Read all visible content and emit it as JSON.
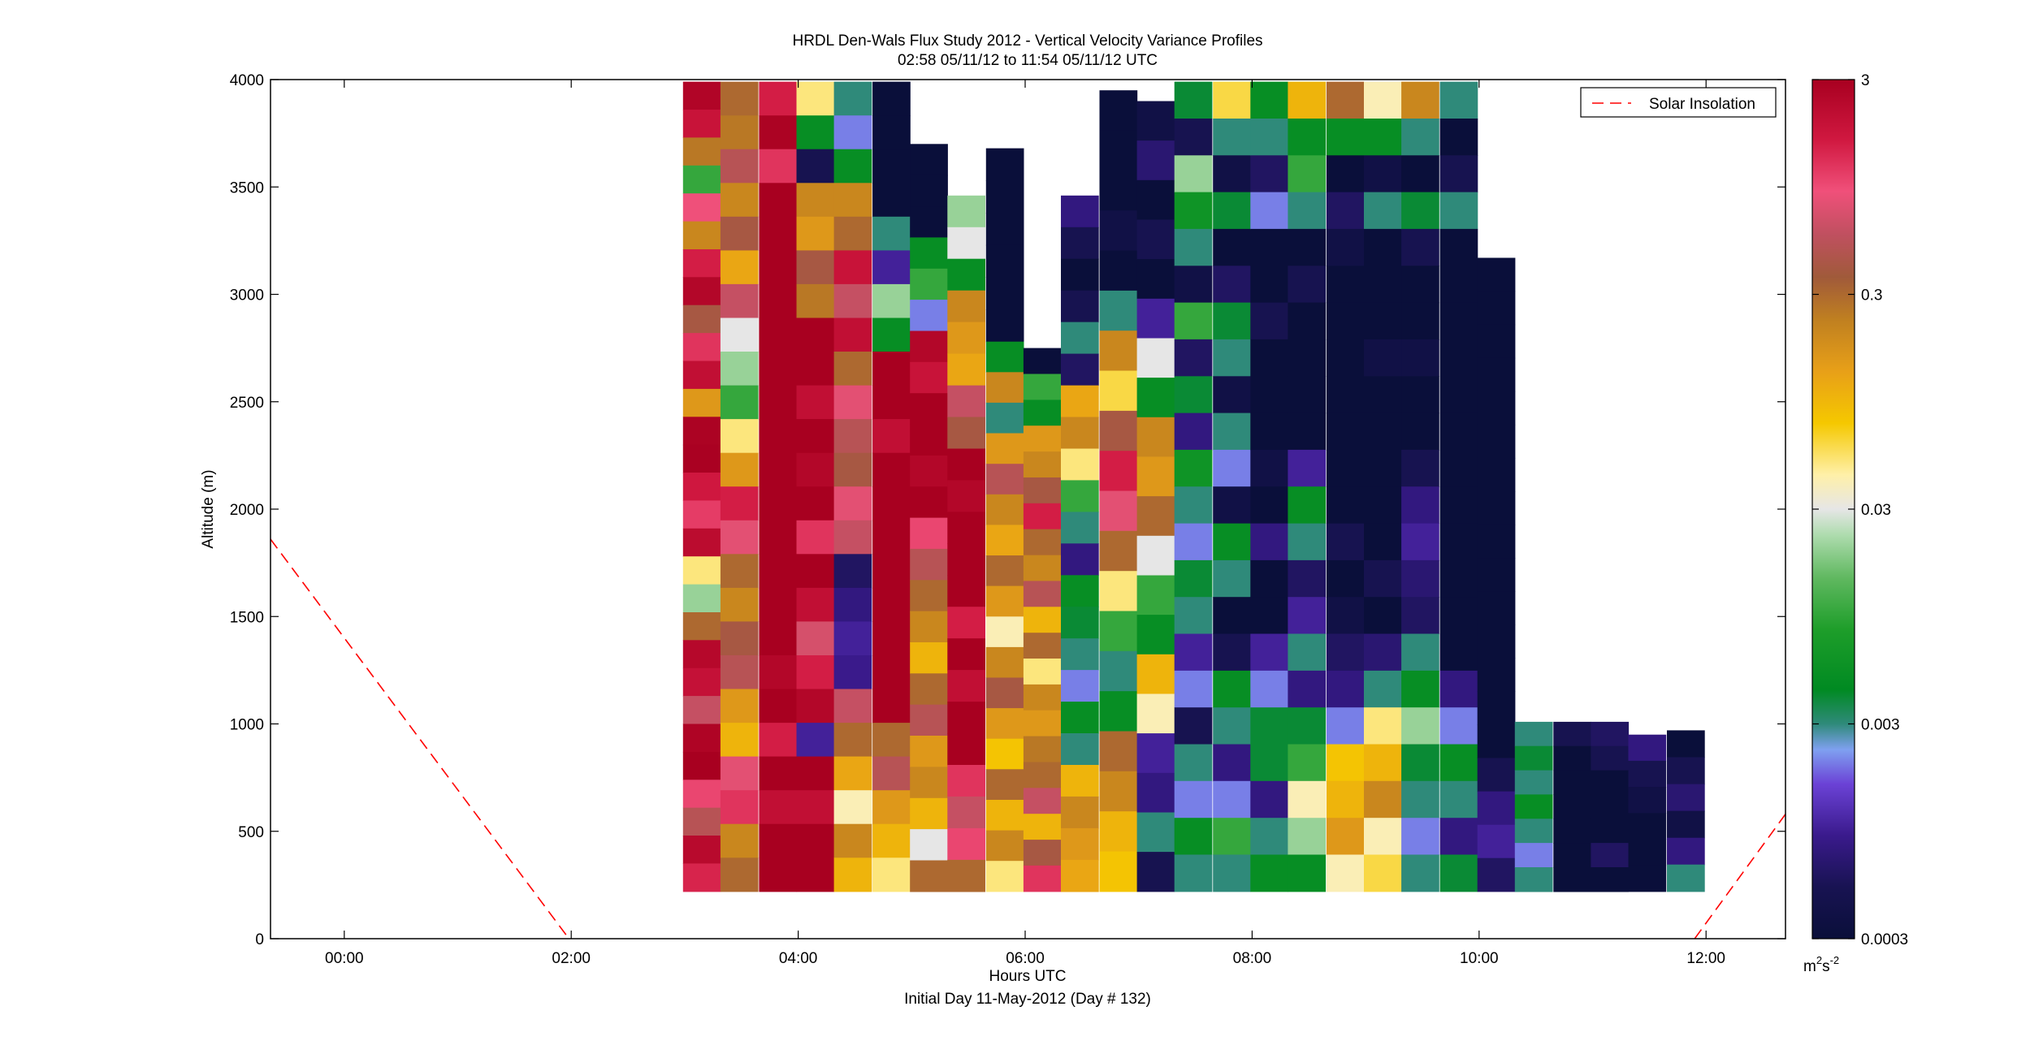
{
  "chart_data": {
    "type": "heatmap",
    "title": "HRDL Den-Wals Flux Study 2012 - Vertical Velocity Variance Profiles",
    "subtitle": "02:58 05/11/12 to 11:54 05/11/12  UTC",
    "xlabel": "Hours UTC",
    "xlabel2": "Initial Day 11-May-2012 (Day # 132)",
    "ylabel": "Altitude (m)",
    "xlim": [
      -0.65,
      12.7
    ],
    "ylim": [
      0,
      4000
    ],
    "x_ticks": [
      0,
      2,
      4,
      6,
      8,
      10,
      12
    ],
    "x_tick_labels": [
      "00:00",
      "02:00",
      "04:00",
      "06:00",
      "08:00",
      "10:00",
      "12:00"
    ],
    "y_ticks": [
      0,
      500,
      1000,
      1500,
      2000,
      2500,
      3000,
      3500,
      4000
    ],
    "y_tick_labels": [
      "0",
      "500",
      "1000",
      "1500",
      "2000",
      "2500",
      "3000",
      "3500",
      "4000"
    ],
    "legend": {
      "entries": [
        "Solar Insolation"
      ],
      "placement": "top-right"
    },
    "colorbar": {
      "scale": "log",
      "range": [
        0.0003,
        3
      ],
      "tick_values": [
        0.0003,
        0.003,
        0.03,
        0.3,
        3
      ],
      "tick_labels": [
        "0.0003",
        "0.003",
        "0.03",
        "0.3",
        "3"
      ],
      "unit_base": "m",
      "unit_base_exp": "2",
      "unit_second": "s",
      "unit_second_exp": "-2"
    },
    "solar_insolation": {
      "color": "#ff0000",
      "style": "dashed",
      "segments": [
        {
          "x": [
            -0.65,
            1.98
          ],
          "y": [
            1860,
            0
          ]
        },
        {
          "x": [
            11.9,
            12.7
          ],
          "y": [
            0,
            580
          ]
        }
      ]
    },
    "profiles": [
      {
        "time": 3.15,
        "top": 3990,
        "bottom": 220,
        "levels": [
          2.6,
          1.8,
          0.25,
          0.01,
          0.9,
          0.2,
          1.5,
          2.5,
          0.4,
          1.2,
          2.0,
          0.15,
          2.8,
          2.9,
          1.6,
          1.1,
          2.2,
          0.05,
          0.02,
          0.3,
          2.4,
          1.9,
          0.6,
          2.7,
          3.0,
          1.0,
          0.5,
          2.3,
          1.4
        ]
      },
      {
        "time": 3.48,
        "top": 3990,
        "bottom": 220,
        "levels": [
          0.3,
          0.25,
          0.5,
          0.2,
          0.4,
          0.12,
          0.6,
          0.03,
          0.02,
          0.01,
          0.05,
          0.15,
          1.5,
          0.8,
          0.3,
          0.2,
          0.4,
          0.5,
          0.15,
          0.1,
          0.8,
          1.2,
          0.2,
          0.3
        ]
      },
      {
        "time": 3.82,
        "top": 3990,
        "bottom": 220,
        "levels": [
          1.5,
          2.8,
          1.2,
          3.0,
          3.0,
          3.0,
          3.0,
          3.0,
          3.0,
          3.0,
          3.0,
          3.0,
          3.0,
          3.0,
          3.0,
          3.0,
          3.0,
          2.5,
          3.0,
          1.5,
          3.0,
          2.0,
          3.0,
          3.0
        ]
      },
      {
        "time": 4.15,
        "top": 3990,
        "bottom": 220,
        "levels": [
          0.05,
          0.005,
          0.0005,
          0.2,
          0.15,
          0.4,
          0.25,
          3.0,
          3.0,
          2.0,
          3.0,
          2.5,
          3.0,
          1.2,
          3.0,
          2.0,
          0.7,
          1.5,
          2.5,
          0.001,
          3.0,
          2.0,
          3.0,
          3.0
        ]
      },
      {
        "time": 4.48,
        "top": 3990,
        "bottom": 220,
        "levels": [
          0.003,
          0.002,
          0.005,
          0.2,
          0.3,
          1.8,
          0.6,
          2.0,
          0.3,
          0.8,
          0.5,
          0.4,
          0.8,
          0.6,
          0.0006,
          0.0008,
          0.001,
          0.0009,
          0.6,
          0.3,
          0.12,
          0.04,
          0.2,
          0.1
        ]
      },
      {
        "time": 4.82,
        "top": 3990,
        "bottom": 220,
        "levels": [
          0.0003,
          0.0003,
          0.0003,
          0.0003,
          0.003,
          0.001,
          0.02,
          0.005,
          3.0,
          3.0,
          2.0,
          3.0,
          3.0,
          3.0,
          3.0,
          3.0,
          3.0,
          3.0,
          3.0,
          0.3,
          0.5,
          0.15,
          0.1,
          0.05
        ]
      },
      {
        "time": 5.15,
        "top": 3700,
        "bottom": 220,
        "levels": [
          0.0003,
          0.0003,
          0.0003,
          0.005,
          0.01,
          0.002,
          2.5,
          1.8,
          3.0,
          3.0,
          2.5,
          3.0,
          1.0,
          0.5,
          0.3,
          0.2,
          0.1,
          0.3,
          0.5,
          0.15,
          0.2,
          0.1,
          0.03,
          0.3
        ]
      },
      {
        "time": 5.48,
        "top": 3460,
        "bottom": 220,
        "levels": [
          0.02,
          0.03,
          0.005,
          0.2,
          0.15,
          0.12,
          0.6,
          0.4,
          3.0,
          2.5,
          3.0,
          3.0,
          3.0,
          1.5,
          3.0,
          2.0,
          3.0,
          3.0,
          1.2,
          0.6,
          1.0,
          0.3
        ]
      },
      {
        "time": 5.82,
        "top": 3680,
        "bottom": 2780,
        "levels": [
          0.0003,
          0.0003,
          0.0003,
          0.0003,
          0.0003,
          0.0003
        ]
      },
      {
        "time": 5.82,
        "top": 2780,
        "bottom": 220,
        "levels": [
          0.005,
          0.2,
          0.003,
          0.15,
          0.5,
          0.2,
          0.12,
          0.3,
          0.15,
          0.04,
          0.2,
          0.4,
          0.15,
          0.08,
          0.3,
          0.1,
          0.2,
          0.05
        ]
      },
      {
        "time": 6.15,
        "top": 2750,
        "bottom": 220,
        "levels": [
          0.0003,
          0.01,
          0.005,
          0.15,
          0.2,
          0.4,
          1.5,
          0.3,
          0.2,
          0.5,
          0.1,
          0.3,
          0.05,
          0.2,
          0.15,
          0.25,
          0.3,
          0.6,
          0.1,
          0.4,
          1.2
        ]
      },
      {
        "time": 6.48,
        "top": 3460,
        "bottom": 220,
        "levels": [
          0.0008,
          0.0005,
          0.0003,
          0.0005,
          0.003,
          0.0006,
          0.12,
          0.2,
          0.05,
          0.01,
          0.003,
          0.0008,
          0.005,
          0.004,
          0.003,
          0.002,
          0.005,
          0.003,
          0.1,
          0.2,
          0.15,
          0.12
        ]
      },
      {
        "time": 6.82,
        "top": 3950,
        "bottom": 220,
        "levels": [
          0.0003,
          0.0003,
          0.0003,
          0.0004,
          0.0003,
          0.003,
          0.2,
          0.06,
          0.4,
          1.5,
          0.8,
          0.3,
          0.05,
          0.01,
          0.003,
          0.005,
          0.3,
          0.2,
          0.1,
          0.08
        ]
      },
      {
        "time": 7.15,
        "top": 3900,
        "bottom": 220,
        "levels": [
          0.0004,
          0.0007,
          0.0003,
          0.0005,
          0.0003,
          0.001,
          0.03,
          0.005,
          0.2,
          0.15,
          0.3,
          0.03,
          0.01,
          0.005,
          0.1,
          0.04,
          0.001,
          0.0008,
          0.003,
          0.0005
        ]
      },
      {
        "time": 7.48,
        "top": 3990,
        "bottom": 220,
        "levels": [
          0.004,
          0.0005,
          0.02,
          0.006,
          0.003,
          0.0004,
          0.01,
          0.0006,
          0.004,
          0.0008,
          0.006,
          0.003,
          0.002,
          0.004,
          0.003,
          0.001,
          0.002,
          0.0005,
          0.003,
          0.002,
          0.005,
          0.003
        ]
      },
      {
        "time": 7.82,
        "top": 3990,
        "bottom": 220,
        "levels": [
          0.06,
          0.003,
          0.0004,
          0.004,
          0.0003,
          0.0006,
          0.004,
          0.003,
          0.0004,
          0.003,
          0.002,
          0.0004,
          0.005,
          0.003,
          0.0003,
          0.0005,
          0.005,
          0.003,
          0.0008,
          0.002,
          0.01,
          0.003
        ]
      },
      {
        "time": 8.15,
        "top": 3990,
        "bottom": 220,
        "levels": [
          0.005,
          0.003,
          0.0006,
          0.002,
          0.0003,
          0.0003,
          0.0005,
          0.0003,
          0.0003,
          0.0003,
          0.0004,
          0.0003,
          0.0008,
          0.0003,
          0.0003,
          0.001,
          0.002,
          0.004,
          0.004,
          0.0008,
          0.003,
          0.005
        ]
      },
      {
        "time": 8.48,
        "top": 3990,
        "bottom": 220,
        "levels": [
          0.1,
          0.005,
          0.01,
          0.003,
          0.0003,
          0.0005,
          0.0003,
          0.0003,
          0.0003,
          0.0003,
          0.001,
          0.005,
          0.003,
          0.0006,
          0.001,
          0.003,
          0.0008,
          0.004,
          0.01,
          0.04,
          0.02,
          0.005
        ]
      },
      {
        "time": 8.82,
        "top": 3990,
        "bottom": 220,
        "levels": [
          0.3,
          0.005,
          0.0003,
          0.0006,
          0.0004,
          0.0003,
          0.0003,
          0.0003,
          0.0003,
          0.0003,
          0.0003,
          0.0003,
          0.0005,
          0.0003,
          0.0004,
          0.0006,
          0.0008,
          0.002,
          0.08,
          0.1,
          0.15,
          0.04
        ]
      },
      {
        "time": 9.15,
        "top": 3990,
        "bottom": 220,
        "levels": [
          0.04,
          0.005,
          0.0004,
          0.003,
          0.0003,
          0.0003,
          0.0003,
          0.0004,
          0.0003,
          0.0003,
          0.0003,
          0.0003,
          0.0003,
          0.0005,
          0.0003,
          0.0007,
          0.003,
          0.05,
          0.1,
          0.2,
          0.04,
          0.06
        ]
      },
      {
        "time": 9.48,
        "top": 3990,
        "bottom": 220,
        "levels": [
          0.2,
          0.003,
          0.0003,
          0.004,
          0.0005,
          0.0003,
          0.0003,
          0.0004,
          0.0003,
          0.0003,
          0.0005,
          0.0008,
          0.001,
          0.0007,
          0.0006,
          0.003,
          0.005,
          0.02,
          0.004,
          0.003,
          0.002,
          0.003
        ]
      },
      {
        "time": 9.82,
        "top": 3990,
        "bottom": 220,
        "levels": [
          0.003,
          0.0003,
          0.0005,
          0.003,
          0.0003,
          0.0003,
          0.0003,
          0.0003,
          0.0003,
          0.0003,
          0.0003,
          0.0003,
          0.0003,
          0.0003,
          0.0003,
          0.0003,
          0.0008,
          0.002,
          0.005,
          0.003,
          0.0008,
          0.004
        ]
      },
      {
        "time": 10.15,
        "top": 3170,
        "bottom": 220,
        "levels": [
          0.0003,
          0.0003,
          0.0003,
          0.0003,
          0.0003,
          0.0003,
          0.0003,
          0.0003,
          0.0003,
          0.0003,
          0.0003,
          0.0003,
          0.0003,
          0.0003,
          0.0003,
          0.0005,
          0.0008,
          0.001,
          0.0006
        ]
      },
      {
        "time": 10.48,
        "top": 1010,
        "bottom": 220,
        "levels": [
          0.003,
          0.004,
          0.003,
          0.005,
          0.003,
          0.002,
          0.003
        ]
      },
      {
        "time": 10.82,
        "top": 1010,
        "bottom": 220,
        "levels": [
          0.0005,
          0.0003,
          0.0003,
          0.0003,
          0.0003,
          0.0003,
          0.0003
        ]
      },
      {
        "time": 11.15,
        "top": 1010,
        "bottom": 220,
        "levels": [
          0.0006,
          0.0005,
          0.0003,
          0.0003,
          0.0003,
          0.0006,
          0.0003
        ]
      },
      {
        "time": 11.48,
        "top": 950,
        "bottom": 220,
        "levels": [
          0.0008,
          0.0005,
          0.0004,
          0.0003,
          0.0003,
          0.0003
        ]
      },
      {
        "time": 11.82,
        "top": 970,
        "bottom": 220,
        "levels": [
          0.0003,
          0.0005,
          0.0007,
          0.0004,
          0.0008,
          0.003
        ]
      }
    ]
  }
}
